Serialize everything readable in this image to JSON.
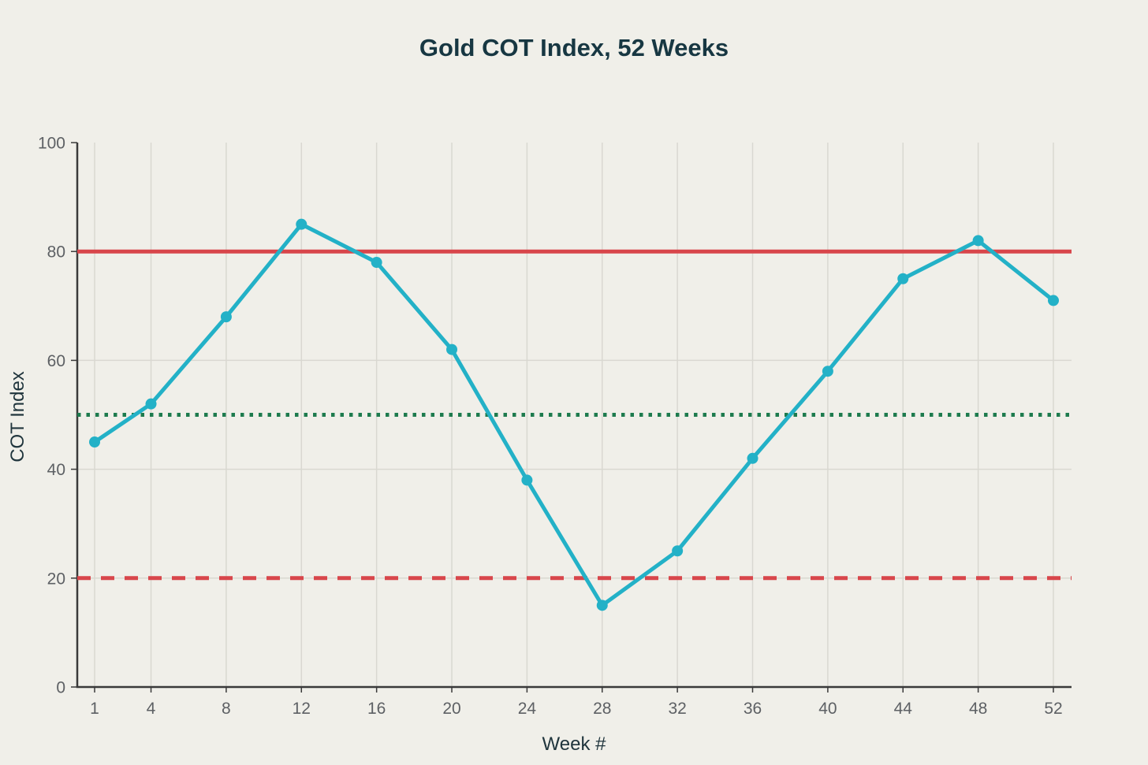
{
  "page": {
    "background_color": "#f0efe9"
  },
  "chart_data": {
    "type": "line",
    "title": "Gold COT Index, 52 Weeks",
    "xlabel": "Week #",
    "ylabel": "COT Index",
    "x": [
      1,
      4,
      8,
      12,
      16,
      20,
      24,
      28,
      32,
      36,
      40,
      44,
      48,
      52
    ],
    "series": [
      {
        "name": "Gold COT Index",
        "color": "#23b1c7",
        "marker": "circle",
        "values": [
          45,
          52,
          68,
          85,
          78,
          62,
          38,
          15,
          25,
          42,
          58,
          75,
          82,
          71
        ]
      }
    ],
    "reference_lines": [
      {
        "y": 80,
        "style": "solid",
        "color": "#d8464b"
      },
      {
        "y": 50,
        "style": "dotted",
        "color": "#1e7b4e"
      },
      {
        "y": 20,
        "style": "dashed",
        "color": "#d8464b"
      }
    ],
    "xticks": [
      1,
      4,
      8,
      12,
      16,
      20,
      24,
      28,
      32,
      36,
      40,
      44,
      48,
      52
    ],
    "yticks": [
      0,
      20,
      40,
      60,
      80,
      100
    ],
    "xlim": [
      1,
      52
    ],
    "ylim": [
      0,
      100
    ],
    "grid": true,
    "legend": "none",
    "colors": {
      "title": "#173742",
      "axis_label": "#20353d",
      "tick_label": "#5d6064",
      "grid": "#d9d8d1",
      "spine": "#3a3a3a",
      "background": "#f0efe9"
    }
  }
}
